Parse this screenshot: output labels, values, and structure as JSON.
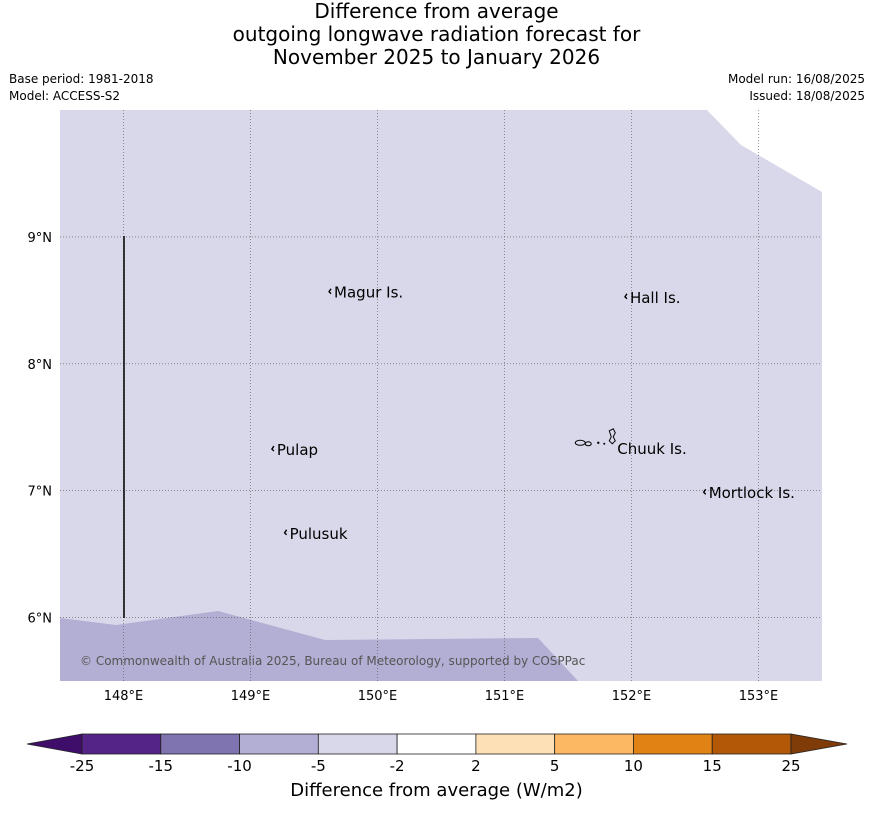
{
  "title": {
    "line1": "Difference from average",
    "line2": "outgoing longwave radiation forecast for",
    "line3": "November 2025 to January 2026"
  },
  "meta": {
    "base_period": "Base period: 1981-2018",
    "model": "Model: ACCESS-S2",
    "model_run": "Model run: 16/08/2025",
    "issued": "Issued: 18/08/2025"
  },
  "map": {
    "lon_range": [
      147.5,
      153.5
    ],
    "lat_range": [
      5.5,
      10.0
    ],
    "lon_ticks": [
      {
        "value": 148,
        "label": "148°E"
      },
      {
        "value": 149,
        "label": "149°E"
      },
      {
        "value": 150,
        "label": "150°E"
      },
      {
        "value": 151,
        "label": "151°E"
      },
      {
        "value": 152,
        "label": "152°E"
      },
      {
        "value": 153,
        "label": "153°E"
      }
    ],
    "lat_ticks": [
      {
        "value": 9,
        "label": "9°N"
      },
      {
        "value": 8,
        "label": "8°N"
      },
      {
        "value": 7,
        "label": "7°N"
      },
      {
        "value": 6,
        "label": "6°N"
      }
    ],
    "islands": [
      {
        "name": "Magur Is.",
        "lon": 149.65,
        "lat": 8.56
      },
      {
        "name": "Hall Is.",
        "lon": 151.98,
        "lat": 8.52
      },
      {
        "name": "Pulap",
        "lon": 149.2,
        "lat": 7.32
      },
      {
        "name": "Chuuk Is.",
        "lon": 151.88,
        "lat": 7.33
      },
      {
        "name": "Mortlock Is.",
        "lon": 152.6,
        "lat": 6.98
      },
      {
        "name": "Pulusuk",
        "lon": 149.3,
        "lat": 6.66
      }
    ],
    "fill_regions": [
      {
        "category": "-5 to -2",
        "color": "#d8d8ea"
      },
      {
        "category": "-10 to -5",
        "color": "#b3aed3"
      }
    ],
    "copyright": "© Commonwealth of Australia 2025, Bureau of Meteorology, supported by COSPPac"
  },
  "colorbar": {
    "title": "Difference from average (W/m2)",
    "ticks": [
      "-25",
      "-15",
      "-10",
      "-5",
      "-2",
      "2",
      "5",
      "10",
      "15",
      "25"
    ],
    "colors": [
      "#3f0e6b",
      "#542486",
      "#7f74b0",
      "#b3aed3",
      "#d8d8ea",
      "#ffffff",
      "#fde0b6",
      "#fdb863",
      "#e08214",
      "#b35806",
      "#7f3b08"
    ]
  }
}
